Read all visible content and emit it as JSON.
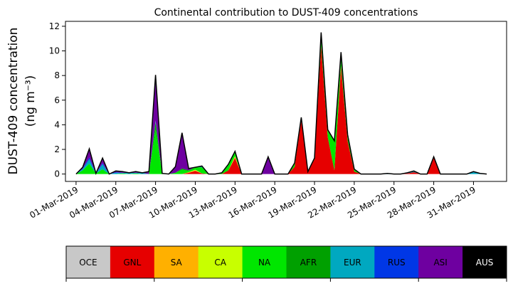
{
  "chart_data": {
    "type": "area",
    "title": "Continental contribution to DUST-409 concentrations",
    "ylabel_line1": "DUST-409 concentration",
    "ylabel_line2": "(ng m⁻³)",
    "xlabel": "",
    "ylim": [
      -0.6,
      12.4
    ],
    "yticks": [
      0,
      2,
      4,
      6,
      8,
      10,
      12
    ],
    "xlim": [
      -0.8,
      32.5
    ],
    "xticks": [
      0,
      3,
      6,
      9,
      12,
      15,
      18,
      21,
      24,
      27,
      30
    ],
    "xtick_labels": [
      "01-Mar-2019",
      "04-Mar-2019",
      "07-Mar-2019",
      "10-Mar-2019",
      "13-Mar-2019",
      "16-Mar-2019",
      "19-Mar-2019",
      "22-Mar-2019",
      "25-Mar-2019",
      "28-Mar-2019",
      "31-Mar-2019"
    ],
    "grid": false,
    "stacked": true,
    "x": [
      0,
      0.5,
      1,
      1.5,
      2,
      2.5,
      3,
      3.5,
      4,
      4.5,
      5,
      5.5,
      6,
      6.5,
      7,
      7.5,
      8,
      8.5,
      9,
      9.5,
      10,
      10.5,
      11,
      11.5,
      12,
      12.5,
      13,
      13.5,
      14,
      14.5,
      15,
      15.5,
      16,
      16.5,
      17,
      17.5,
      18,
      18.5,
      19,
      19.5,
      20,
      20.5,
      21,
      21.5,
      22,
      22.5,
      23,
      23.5,
      24,
      24.5,
      25,
      25.5,
      26,
      26.5,
      27,
      27.5,
      28,
      28.5,
      29,
      29.5,
      30,
      30.5,
      31
    ],
    "series": [
      {
        "name": "OCE",
        "color": "#c8c8c8",
        "values": [
          0,
          0,
          0,
          0,
          0,
          0,
          0,
          0,
          0,
          0,
          0,
          0,
          0,
          0,
          0,
          0,
          0,
          0,
          0,
          0,
          0,
          0,
          0,
          0,
          0,
          0,
          0,
          0,
          0,
          0,
          0,
          0,
          0,
          0,
          0,
          0,
          0,
          0,
          0,
          0,
          0,
          0,
          0,
          0,
          0,
          0,
          0,
          0,
          0,
          0,
          0,
          0,
          0,
          0,
          0,
          0,
          0,
          0,
          0,
          0,
          0,
          0,
          0
        ]
      },
      {
        "name": "GNL",
        "color": "#e60000",
        "values": [
          0,
          0,
          0,
          0,
          0,
          0,
          0,
          0,
          0,
          0,
          0,
          0,
          0,
          0,
          0,
          0,
          0,
          0.1,
          0.25,
          0.05,
          0,
          0,
          0,
          0.3,
          1.3,
          0,
          0,
          0,
          0,
          0,
          0,
          0,
          0,
          0.6,
          4.4,
          0.2,
          1.2,
          10.4,
          3.0,
          0.3,
          8.7,
          2.7,
          0.2,
          0,
          0,
          0,
          0,
          0,
          0,
          0,
          0.05,
          0.15,
          0,
          0,
          1.4,
          0,
          0,
          0,
          0,
          0,
          0,
          0,
          0
        ]
      },
      {
        "name": "SA",
        "color": "#ffb000",
        "values": [
          0,
          0,
          0,
          0,
          0,
          0,
          0,
          0,
          0,
          0,
          0,
          0,
          0,
          0,
          0,
          0,
          0,
          0.05,
          0.05,
          0,
          0,
          0,
          0,
          0,
          0.1,
          0,
          0,
          0,
          0,
          0,
          0,
          0,
          0,
          0,
          0,
          0,
          0,
          0,
          0,
          0,
          0.1,
          0,
          0,
          0,
          0,
          0,
          0,
          0,
          0,
          0,
          0,
          0,
          0,
          0,
          0,
          0,
          0,
          0,
          0,
          0,
          0,
          0,
          0
        ]
      },
      {
        "name": "CA",
        "color": "#c8ff00",
        "values": [
          0,
          0,
          0,
          0,
          0,
          0,
          0,
          0,
          0,
          0,
          0,
          0,
          0,
          0,
          0,
          0,
          0,
          0,
          0.05,
          0,
          0,
          0,
          0,
          0,
          0.05,
          0,
          0,
          0,
          0,
          0,
          0,
          0,
          0,
          0,
          0,
          0,
          0,
          0,
          0,
          0,
          0,
          0,
          0,
          0,
          0,
          0,
          0,
          0,
          0,
          0,
          0,
          0,
          0,
          0,
          0,
          0,
          0,
          0,
          0,
          0,
          0,
          0,
          0
        ]
      },
      {
        "name": "NA",
        "color": "#00e600",
        "values": [
          0,
          0.3,
          0.85,
          0.05,
          0.4,
          0,
          0,
          0.05,
          0,
          0.05,
          0,
          0,
          3.6,
          0.05,
          0,
          0.1,
          0.35,
          0.1,
          0.2,
          0.5,
          0,
          0,
          0.1,
          0.5,
          0.35,
          0,
          0,
          0,
          0,
          0,
          0,
          0,
          0,
          0.3,
          0.2,
          0,
          0.1,
          0.5,
          0.6,
          2.4,
          0.5,
          0.5,
          0.2,
          0,
          0,
          0,
          0,
          0,
          0,
          0,
          0,
          0,
          0,
          0,
          0,
          0,
          0,
          0,
          0,
          0,
          0,
          0,
          0
        ]
      },
      {
        "name": "AFR",
        "color": "#00a000",
        "values": [
          0,
          0,
          0,
          0,
          0,
          0,
          0,
          0,
          0,
          0,
          0,
          0,
          0.6,
          0,
          0,
          0,
          0.1,
          0.05,
          0,
          0,
          0,
          0,
          0,
          0,
          0,
          0,
          0,
          0,
          0,
          0,
          0,
          0,
          0,
          0,
          0,
          0,
          0,
          0,
          0,
          0,
          0,
          0,
          0,
          0,
          0,
          0,
          0,
          0,
          0,
          0,
          0,
          0,
          0,
          0,
          0,
          0,
          0,
          0,
          0,
          0,
          0,
          0,
          0
        ]
      },
      {
        "name": "EUR",
        "color": "#00a8c0",
        "values": [
          0,
          0.1,
          0.35,
          0,
          0.4,
          0,
          0.1,
          0.05,
          0.1,
          0.05,
          0.1,
          0,
          0.1,
          0,
          0,
          0,
          0,
          0,
          0,
          0.05,
          0,
          0,
          0,
          0,
          0,
          0,
          0,
          0,
          0,
          0,
          0,
          0,
          0,
          0,
          0,
          0,
          0,
          0,
          0,
          0,
          0,
          0,
          0,
          0,
          0,
          0,
          0,
          0.05,
          0,
          0,
          0,
          0.1,
          0,
          0,
          0,
          0,
          0,
          0,
          0,
          0,
          0.15,
          0.05,
          0
        ]
      },
      {
        "name": "RUS",
        "color": "#0037e6",
        "values": [
          0,
          0.05,
          0.15,
          0,
          0.1,
          0,
          0.05,
          0,
          0,
          0,
          0,
          0,
          0.05,
          0,
          0,
          0,
          0,
          0,
          0,
          0,
          0,
          0,
          0,
          0,
          0,
          0,
          0,
          0,
          0,
          0,
          0,
          0,
          0,
          0,
          0,
          0,
          0,
          0,
          0,
          0,
          0,
          0,
          0,
          0,
          0,
          0,
          0,
          0,
          0,
          0,
          0.05,
          0,
          0,
          0,
          0,
          0,
          0,
          0,
          0,
          0,
          0.05,
          0,
          0
        ]
      },
      {
        "name": "ASI",
        "color": "#6e00a0",
        "values": [
          0,
          0.1,
          0.7,
          0,
          0.4,
          0,
          0.1,
          0.1,
          0,
          0.1,
          0,
          0.2,
          3.7,
          0,
          0,
          0.5,
          2.9,
          0.15,
          0,
          0.05,
          0,
          0,
          0,
          0,
          0.05,
          0,
          0,
          0,
          0,
          1.4,
          0,
          0,
          0,
          0,
          0,
          0,
          0,
          0.6,
          0,
          0,
          0.6,
          0,
          0,
          0,
          0,
          0,
          0,
          0,
          0,
          0,
          0,
          0,
          0,
          0,
          0,
          0,
          0,
          0,
          0,
          0,
          0,
          0,
          0
        ]
      },
      {
        "name": "AUS",
        "color": "#000000",
        "values": [
          0,
          0,
          0,
          0,
          0,
          0,
          0,
          0,
          0,
          0,
          0,
          0,
          0,
          0,
          0,
          0,
          0,
          0,
          0,
          0,
          0,
          0,
          0,
          0,
          0,
          0,
          0,
          0,
          0,
          0,
          0,
          0,
          0,
          0,
          0,
          0,
          0,
          0,
          0,
          0,
          0,
          0,
          0,
          0,
          0,
          0,
          0,
          0,
          0,
          0,
          0,
          0,
          0,
          0,
          0,
          0,
          0,
          0,
          0,
          0,
          0,
          0,
          0
        ]
      }
    ],
    "legend": {
      "placement": "bottom",
      "entries": [
        {
          "name": "OCE",
          "color": "#c8c8c8",
          "text_color": "#000000"
        },
        {
          "name": "GNL",
          "color": "#e60000",
          "text_color": "#000000"
        },
        {
          "name": "SA",
          "color": "#ffb000",
          "text_color": "#000000"
        },
        {
          "name": "CA",
          "color": "#c8ff00",
          "text_color": "#000000"
        },
        {
          "name": "NA",
          "color": "#00e600",
          "text_color": "#000000"
        },
        {
          "name": "AFR",
          "color": "#00a000",
          "text_color": "#000000"
        },
        {
          "name": "EUR",
          "color": "#00a8c0",
          "text_color": "#000000"
        },
        {
          "name": "RUS",
          "color": "#0037e6",
          "text_color": "#000000"
        },
        {
          "name": "ASI",
          "color": "#6e00a0",
          "text_color": "#000000"
        },
        {
          "name": "AUS",
          "color": "#000000",
          "text_color": "#ffffff"
        }
      ]
    }
  }
}
